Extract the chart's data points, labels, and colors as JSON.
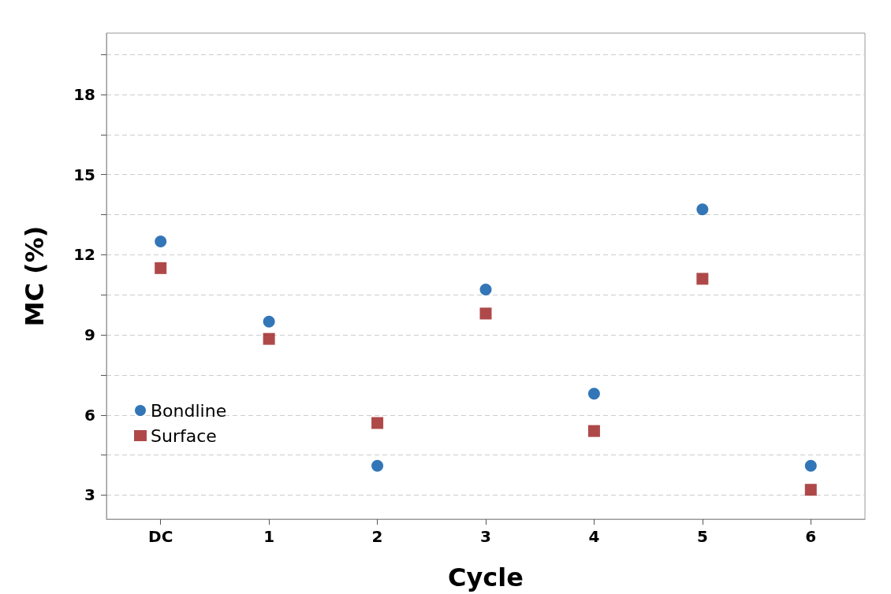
{
  "chart_data": {
    "type": "scatter",
    "xlabel": "Cycle",
    "ylabel": "MC (%)",
    "categories": [
      "DC",
      "1",
      "2",
      "3",
      "4",
      "5",
      "6"
    ],
    "series": [
      {
        "name": "Bondline",
        "color": "#0054a6",
        "marker": "circle",
        "values": [
          12.5,
          9.5,
          4.1,
          10.7,
          6.8,
          13.7,
          4.1
        ]
      },
      {
        "name": "Surface",
        "color": "#9b1c1c",
        "marker": "square",
        "values": [
          11.5,
          8.85,
          5.7,
          9.8,
          5.4,
          11.1,
          3.2
        ]
      }
    ],
    "ylim": [
      2.1,
      20.3
    ],
    "yticks": [
      3,
      {
        "value": 4.5,
        "label": null
      },
      6,
      {
        "value": 7.5,
        "label": null
      },
      9,
      {
        "value": 10.5,
        "label": null
      },
      12,
      {
        "value": 13.5,
        "label": null
      },
      15,
      {
        "value": 16.5,
        "label": null
      },
      18,
      {
        "value": 19.5,
        "label": null
      }
    ],
    "grid": "y",
    "legend": "left"
  }
}
